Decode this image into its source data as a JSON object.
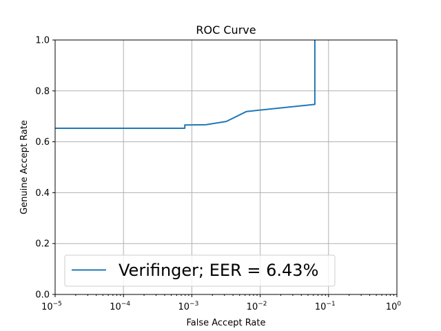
{
  "chart_data": {
    "type": "line",
    "title": "ROC Curve",
    "xlabel": "False Accept Rate",
    "ylabel": "Genuine Accept Rate",
    "xscale": "log",
    "xlim": [
      1e-05,
      1
    ],
    "ylim": [
      0,
      1
    ],
    "grid": true,
    "legend_position": "lower-left",
    "x_ticks": [
      {
        "value": 1e-05,
        "base": "10",
        "exp": "−5"
      },
      {
        "value": 0.0001,
        "base": "10",
        "exp": "−4"
      },
      {
        "value": 0.001,
        "base": "10",
        "exp": "−3"
      },
      {
        "value": 0.01,
        "base": "10",
        "exp": "−2"
      },
      {
        "value": 0.1,
        "base": "10",
        "exp": "−1"
      },
      {
        "value": 1,
        "base": "10",
        "exp": "0"
      }
    ],
    "y_ticks": [
      {
        "value": 0,
        "label": "0.0"
      },
      {
        "value": 0.2,
        "label": "0.2"
      },
      {
        "value": 0.4,
        "label": "0.4"
      },
      {
        "value": 0.6,
        "label": "0.6"
      },
      {
        "value": 0.8,
        "label": "0.8"
      },
      {
        "value": 1.0,
        "label": "1.0"
      }
    ],
    "series": [
      {
        "name": "Verifinger; EER = 6.43%",
        "color": "#1f77b4",
        "x": [
          1e-05,
          0.00079,
          0.00079,
          0.0016,
          0.0032,
          0.0063,
          0.063,
          0.063,
          0.063
        ],
        "y": [
          0.653,
          0.653,
          0.666,
          0.667,
          0.68,
          0.719,
          0.747,
          0.747,
          1.0
        ]
      }
    ]
  }
}
